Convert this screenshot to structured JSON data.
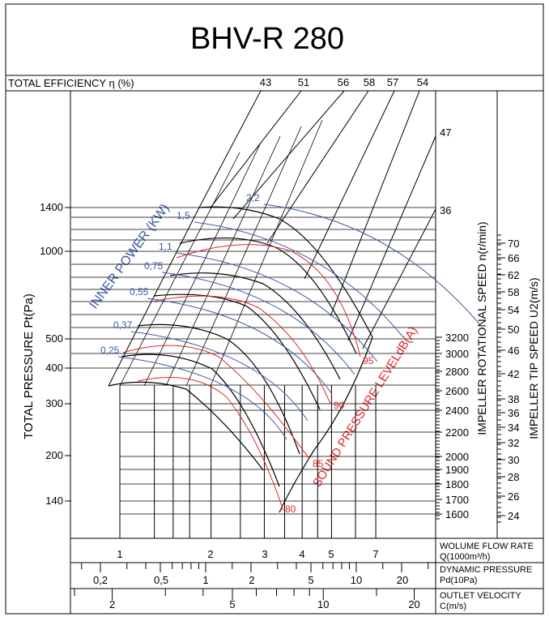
{
  "chart_data": {
    "type": "line",
    "title": "BHV-R 280",
    "efficiency_label": "TOTAL EFFICIENCY η (%)",
    "efficiency_values": [
      "43",
      "51",
      "56",
      "58",
      "57",
      "54",
      "47",
      "36"
    ],
    "ylabel": "TOTAL PRESSURE Pt(Pa)",
    "y_ticks": [
      "1400",
      "1000",
      "500",
      "400",
      "300",
      "200",
      "140"
    ],
    "power_label": "INNER POWER (KW)",
    "power_values": [
      "2,2",
      "1,5",
      "1,1",
      "0,75",
      "0,55",
      "0,37",
      "0,25"
    ],
    "sound_label": "SOUND PRESSURE LEVELdB(A)",
    "sound_values": [
      "95",
      "90",
      "85",
      "80"
    ],
    "speed_label": "IMPELLER ROTATIONAL SPEED n(r/min)",
    "speed_values": [
      "3200",
      "3000",
      "2800",
      "2600",
      "2400",
      "2200",
      "2000",
      "1900",
      "1800",
      "1700",
      "1600"
    ],
    "tip_label": "IMPELLER TIP SPEED U2(m/s)",
    "tip_values": [
      "70",
      "66",
      "62",
      "58",
      "54",
      "50",
      "46",
      "42",
      "38",
      "36",
      "34",
      "32",
      "30",
      "28",
      "26",
      "24"
    ],
    "flow_label": "WOLUME FLOW RATE",
    "flow_unit": "Q(1000m³/h)",
    "flow_ticks": [
      "1",
      "2",
      "3",
      "4",
      "5",
      "7"
    ],
    "dyn_label": "DYNAMIC PRESSURE",
    "dyn_unit": "Pd(10Pa)",
    "dyn_ticks": [
      "0,2",
      "0,5",
      "1",
      "2",
      "5",
      "10",
      "20"
    ],
    "vel_label": "OUTLET VELOCITY",
    "vel_unit": "C(m/s)",
    "vel_ticks": [
      "2",
      "5",
      "10",
      "20"
    ],
    "colors": {
      "power": "#3b5aa6",
      "sound": "#e0262b",
      "line": "#000000"
    }
  }
}
